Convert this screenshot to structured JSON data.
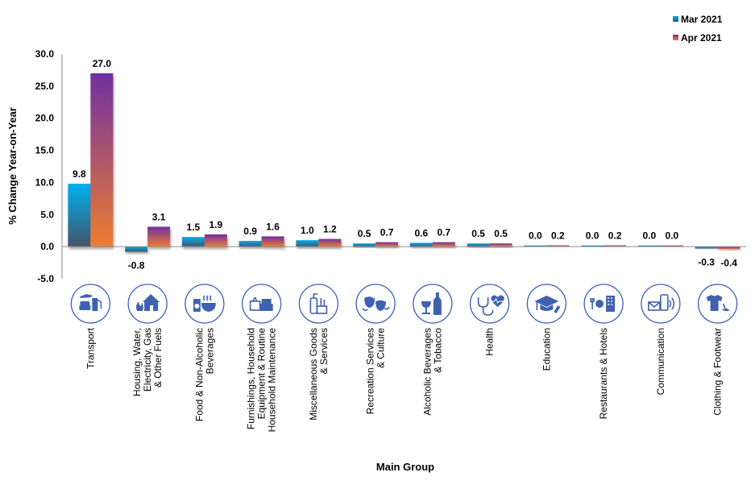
{
  "chart_data": {
    "type": "bar",
    "title": "",
    "xlabel": "Main Group",
    "ylabel": "% Change Year-on-Year",
    "ylim": [
      -5.0,
      30.0
    ],
    "yticks": [
      "30.0",
      "25.0",
      "20.0",
      "15.0",
      "10.0",
      "5.0",
      "0.0",
      "-5.0"
    ],
    "ytick_values": [
      30,
      25,
      20,
      15,
      10,
      5,
      0,
      -5
    ],
    "grid": false,
    "legend_position": "top-right",
    "categories": [
      "Transport",
      "Housing, Water, Electricity, Gas & Other Fuels",
      "Food & Non-Alcoholic Beverages",
      "Furnishings, Household Equipment & Routine Household Maintenance",
      "Miscellaneous Goods & Services",
      "Recreation Services & Culture",
      "Alcoholic Beverages & Tobacco",
      "Health",
      "Education",
      "Restaurants & Hotels",
      "Communication",
      "Clothing & Footwear"
    ],
    "category_label_lines": [
      [
        "Transport"
      ],
      [
        "Housing, Water,",
        "Electricity, Gas",
        "& Other Fuels"
      ],
      [
        "Food & Non-Alcoholic",
        "Beverages"
      ],
      [
        "Furnishings, Household",
        "Equipment & Routine",
        "Household Maintenance"
      ],
      [
        "Miscellaneous Goods",
        "& Services"
      ],
      [
        "Recreation Services",
        "& Culture"
      ],
      [
        "Alcoholic Beverages",
        "& Tobacco"
      ],
      [
        "Health"
      ],
      [
        "Education"
      ],
      [
        "Restaurants & Hotels"
      ],
      [
        "Communication"
      ],
      [
        "Clothing & Footwear"
      ]
    ],
    "category_icons": [
      "transport-icon",
      "housing-icon",
      "food-beverage-icon",
      "furnishings-icon",
      "misc-goods-icon",
      "recreation-masks-icon",
      "alcohol-tobacco-icon",
      "health-stethoscope-icon",
      "education-cap-icon",
      "restaurant-hotel-icon",
      "communication-icon",
      "clothing-footwear-icon"
    ],
    "series": [
      {
        "name": "Mar 2021",
        "values": [
          9.8,
          -0.8,
          1.5,
          0.9,
          1.0,
          0.5,
          0.6,
          0.5,
          0.0,
          0.0,
          0.0,
          -0.3
        ],
        "labels": [
          "9.8",
          "-0.8",
          "1.5",
          "0.9",
          "1.0",
          "0.5",
          "0.6",
          "0.5",
          "0.0",
          "0.0",
          "0.0",
          "-0.3"
        ],
        "color_top": "#00b0f0",
        "color_bottom": "#44546a"
      },
      {
        "name": "Apr 2021",
        "values": [
          27.0,
          3.1,
          1.9,
          1.6,
          1.2,
          0.7,
          0.7,
          0.5,
          0.2,
          0.2,
          0.0,
          -0.4
        ],
        "labels": [
          "27.0",
          "3.1",
          "1.9",
          "1.6",
          "1.2",
          "0.7",
          "0.7",
          "0.5",
          "0.2",
          "0.2",
          "0.0",
          "-0.4"
        ],
        "color_top": "#7030a0",
        "color_bottom": "#ed7d31"
      }
    ]
  }
}
